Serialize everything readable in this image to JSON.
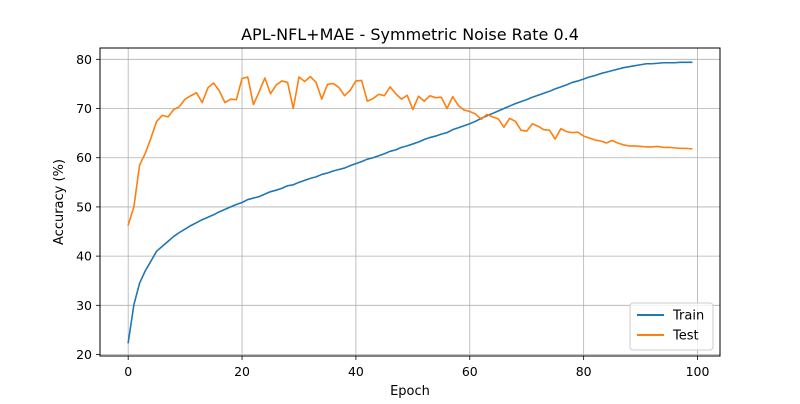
{
  "chart_data": {
    "type": "line",
    "title": "APL-NFL+MAE - Symmetric Noise Rate 0.4",
    "xlabel": "Epoch",
    "ylabel": "Accuracy (%)",
    "xlim": [
      -4.95,
      103.95
    ],
    "ylim": [
      19.7,
      82.3
    ],
    "xticks": [
      0,
      20,
      40,
      60,
      80,
      100
    ],
    "yticks": [
      20,
      30,
      40,
      50,
      60,
      70,
      80
    ],
    "grid": true,
    "legend_position": "lower-right",
    "series": [
      {
        "name": "Train",
        "color": "#1f77b4",
        "x": [
          0,
          1,
          2,
          3,
          4,
          5,
          6,
          7,
          8,
          9,
          10,
          11,
          12,
          13,
          14,
          15,
          16,
          17,
          18,
          19,
          20,
          21,
          22,
          23,
          24,
          25,
          26,
          27,
          28,
          29,
          30,
          31,
          32,
          33,
          34,
          35,
          36,
          37,
          38,
          39,
          40,
          41,
          42,
          43,
          44,
          45,
          46,
          47,
          48,
          49,
          50,
          51,
          52,
          53,
          54,
          55,
          56,
          57,
          58,
          59,
          60,
          61,
          62,
          63,
          64,
          65,
          66,
          67,
          68,
          69,
          70,
          71,
          72,
          73,
          74,
          75,
          76,
          77,
          78,
          79,
          80,
          81,
          82,
          83,
          84,
          85,
          86,
          87,
          88,
          89,
          90,
          91,
          92,
          93,
          94,
          95,
          96,
          97,
          98,
          99
        ],
        "values": [
          22.4,
          30.1,
          34.5,
          37.0,
          39.0,
          41.0,
          42.0,
          43.0,
          44.0,
          44.8,
          45.5,
          46.2,
          46.8,
          47.4,
          47.9,
          48.4,
          49.0,
          49.5,
          50.0,
          50.5,
          50.9,
          51.5,
          51.8,
          52.1,
          52.6,
          53.1,
          53.4,
          53.8,
          54.3,
          54.5,
          55.0,
          55.4,
          55.8,
          56.1,
          56.6,
          56.9,
          57.3,
          57.6,
          57.9,
          58.4,
          58.8,
          59.2,
          59.7,
          60.0,
          60.4,
          60.8,
          61.3,
          61.6,
          62.1,
          62.4,
          62.8,
          63.2,
          63.7,
          64.1,
          64.4,
          64.8,
          65.1,
          65.7,
          66.1,
          66.5,
          66.9,
          67.4,
          68.0,
          68.5,
          69.0,
          69.5,
          70.0,
          70.5,
          71.0,
          71.4,
          71.8,
          72.3,
          72.7,
          73.1,
          73.5,
          74.0,
          74.4,
          74.8,
          75.3,
          75.6,
          76.0,
          76.4,
          76.7,
          77.1,
          77.4,
          77.7,
          78.0,
          78.3,
          78.5,
          78.7,
          78.9,
          79.1,
          79.1,
          79.2,
          79.3,
          79.3,
          79.3,
          79.4,
          79.4,
          79.4
        ]
      },
      {
        "name": "Test",
        "color": "#ff7f0e",
        "x": [
          0,
          1,
          2,
          3,
          4,
          5,
          6,
          7,
          8,
          9,
          10,
          11,
          12,
          13,
          14,
          15,
          16,
          17,
          18,
          19,
          20,
          21,
          22,
          23,
          24,
          25,
          26,
          27,
          28,
          29,
          30,
          31,
          32,
          33,
          34,
          35,
          36,
          37,
          38,
          39,
          40,
          41,
          42,
          43,
          44,
          45,
          46,
          47,
          48,
          49,
          50,
          51,
          52,
          53,
          54,
          55,
          56,
          57,
          58,
          59,
          60,
          61,
          62,
          63,
          64,
          65,
          66,
          67,
          68,
          69,
          70,
          71,
          72,
          73,
          74,
          75,
          76,
          77,
          78,
          79,
          80,
          81,
          82,
          83,
          84,
          85,
          86,
          87,
          88,
          89,
          90,
          91,
          92,
          93,
          94,
          95,
          96,
          97,
          98,
          99
        ],
        "values": [
          46.3,
          50.0,
          58.5,
          60.9,
          64.0,
          67.4,
          68.6,
          68.3,
          69.8,
          70.4,
          71.9,
          72.6,
          73.2,
          71.2,
          74.2,
          75.2,
          73.6,
          71.2,
          71.9,
          71.8,
          76.1,
          76.4,
          70.8,
          73.4,
          76.2,
          73.0,
          74.8,
          75.6,
          75.3,
          70.0,
          76.4,
          75.5,
          76.5,
          75.3,
          71.9,
          74.9,
          75.1,
          74.3,
          72.6,
          73.7,
          75.6,
          75.7,
          71.5,
          72.0,
          72.9,
          72.6,
          74.4,
          73.0,
          71.9,
          72.7,
          69.8,
          72.5,
          71.5,
          72.6,
          72.2,
          72.3,
          70.0,
          72.4,
          70.6,
          69.7,
          69.4,
          68.9,
          67.8,
          68.8,
          68.3,
          67.9,
          66.2,
          68.0,
          67.4,
          65.6,
          65.4,
          66.9,
          66.4,
          65.7,
          65.6,
          63.8,
          65.9,
          65.3,
          65.1,
          65.2,
          64.4,
          64.0,
          63.6,
          63.4,
          63.0,
          63.5,
          63.0,
          62.6,
          62.4,
          62.4,
          62.3,
          62.2,
          62.2,
          62.3,
          62.1,
          62.1,
          62.0,
          61.9,
          61.9,
          61.8
        ]
      }
    ]
  }
}
